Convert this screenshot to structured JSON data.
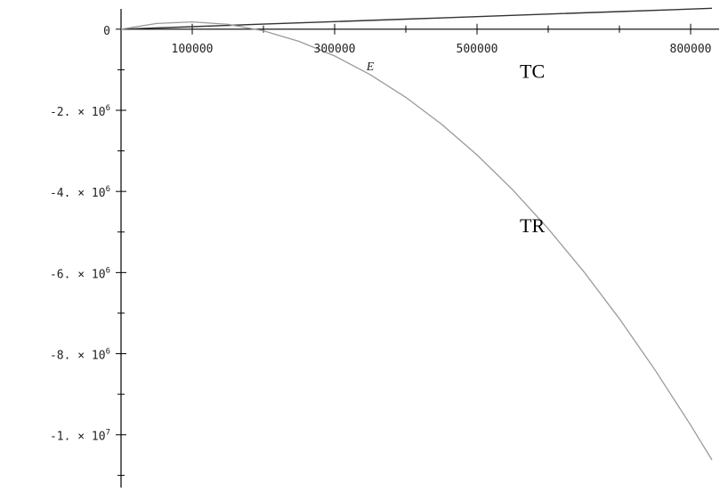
{
  "chart_data": {
    "type": "line",
    "title": "",
    "xlabel": "E",
    "ylabel": "",
    "xlim": [
      0,
      830000
    ],
    "ylim": [
      -11300000,
      500000
    ],
    "grid": false,
    "x_ticks": [
      {
        "value": 100000,
        "label": "100000"
      },
      {
        "value": 300000,
        "label": "300000"
      },
      {
        "value": 500000,
        "label": "500000"
      },
      {
        "value": 800000,
        "label": "800000"
      }
    ],
    "x_minor_ticks": [
      200000,
      400000,
      600000,
      700000
    ],
    "y_ticks": [
      {
        "value": 0,
        "label": "0",
        "exp": ""
      },
      {
        "value": -2000000,
        "label": "-2. × 10",
        "exp": "6"
      },
      {
        "value": -4000000,
        "label": "-4. × 10",
        "exp": "6"
      },
      {
        "value": -6000000,
        "label": "-6. × 10",
        "exp": "6"
      },
      {
        "value": -8000000,
        "label": "-8. × 10",
        "exp": "6"
      },
      {
        "value": -10000000,
        "label": "-1. × 10",
        "exp": "7"
      }
    ],
    "y_minor_ticks": [
      -1000000,
      -3000000,
      -5000000,
      -7000000,
      -9000000,
      -11000000
    ],
    "series": [
      {
        "name": "TC",
        "color": "#333333",
        "x": [
          0,
          100000,
          200000,
          300000,
          400000,
          500000,
          600000,
          700000,
          800000,
          830000
        ],
        "y": [
          0,
          62000,
          124000,
          186000,
          248000,
          310000,
          372000,
          434000,
          496000,
          515000
        ]
      },
      {
        "name": "TR",
        "color": "#9a9a9a",
        "x": [
          0,
          50000,
          100000,
          150000,
          200000,
          250000,
          300000,
          350000,
          400000,
          450000,
          500000,
          550000,
          600000,
          650000,
          700000,
          750000,
          800000,
          830000
        ],
        "y": [
          0,
          140000,
          180000,
          120000,
          -40000,
          -300000,
          -660000,
          -1120000,
          -1680000,
          -2340000,
          -3100000,
          -3960000,
          -4920000,
          -5980000,
          -7140000,
          -8400000,
          -9760000,
          -10620000
        ]
      }
    ],
    "annotations": [
      {
        "text": "TC",
        "series": "TC"
      },
      {
        "text": "TR",
        "series": "TR"
      }
    ]
  }
}
